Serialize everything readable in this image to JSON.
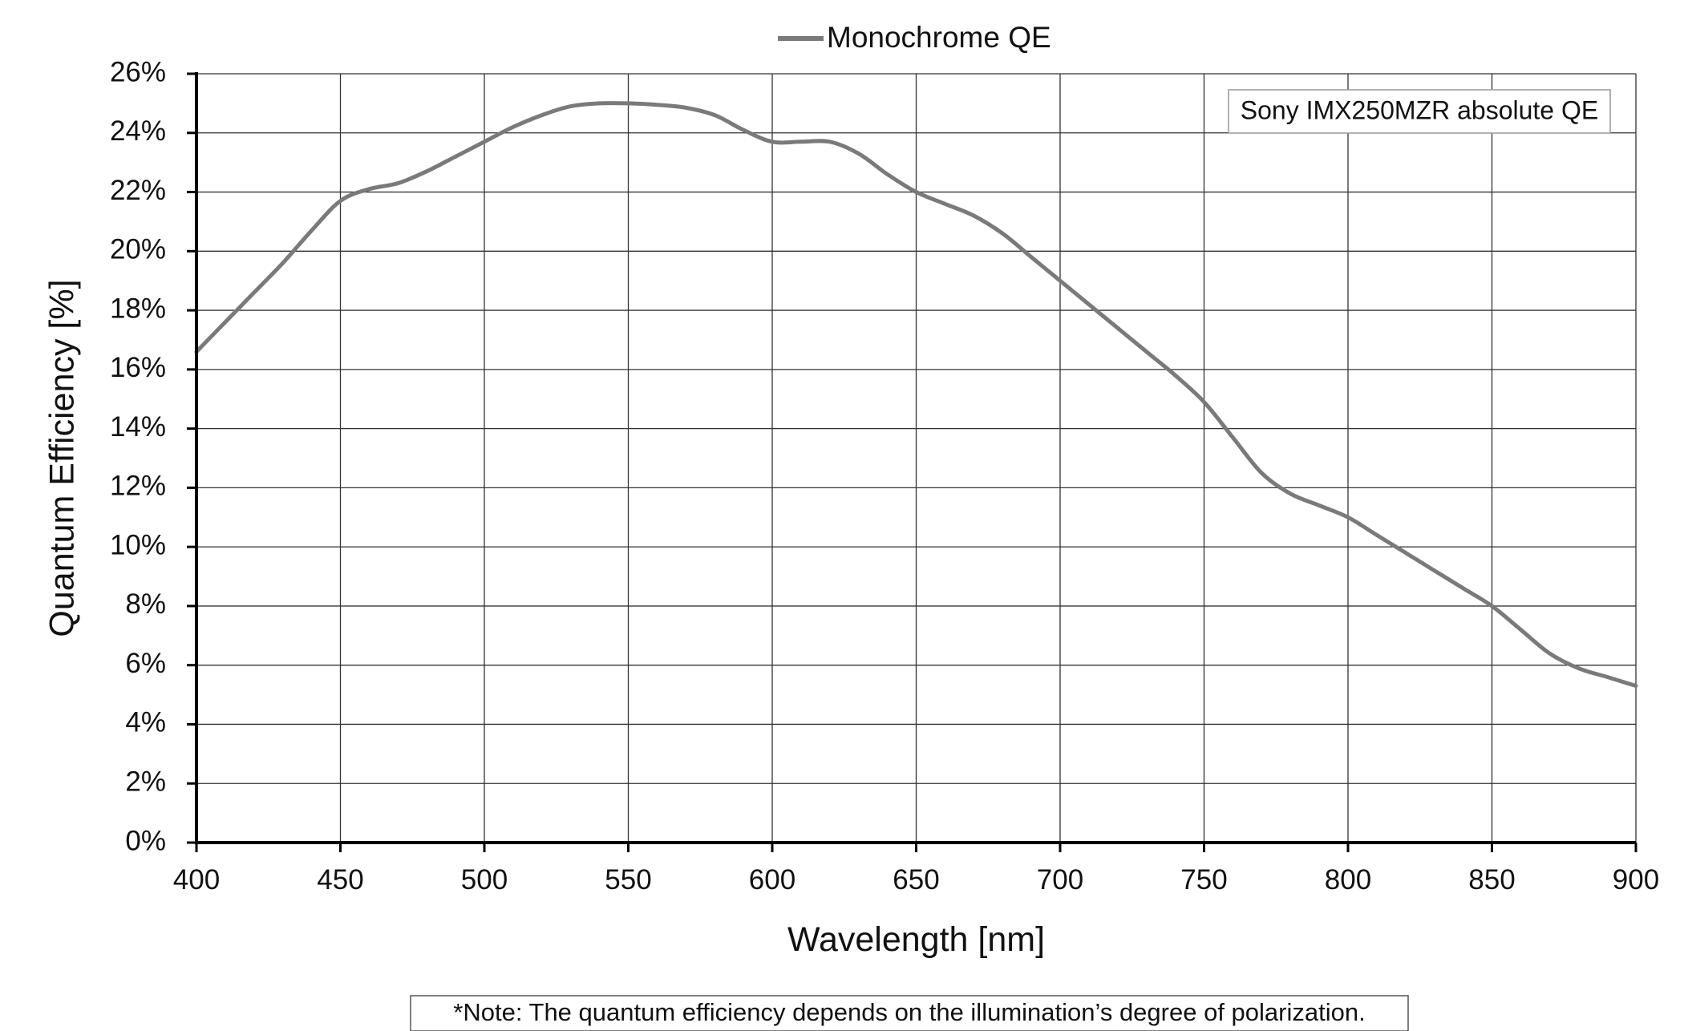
{
  "chart_data": {
    "type": "line",
    "xlabel": "Wavelength [nm]",
    "ylabel": "Quantum Efficiency [%]",
    "xlim": [
      400,
      900
    ],
    "ylim": [
      0,
      26
    ],
    "x_ticks": [
      "400",
      "450",
      "500",
      "550",
      "600",
      "650",
      "700",
      "750",
      "800",
      "850",
      "900"
    ],
    "y_ticks": [
      "0%",
      "2%",
      "4%",
      "6%",
      "8%",
      "10%",
      "12%",
      "14%",
      "16%",
      "18%",
      "20%",
      "22%",
      "24%",
      "26%"
    ],
    "grid": true,
    "legend_position": "top-center",
    "annotation": "Sony IMX250MZR absolute QE",
    "note": "*Note: The quantum efficiency depends on the illumination’s degree of polarization.",
    "series": [
      {
        "name": "Monochrome QE",
        "color": "#7a7a7a",
        "x": [
          400,
          410,
          420,
          430,
          440,
          450,
          460,
          470,
          480,
          490,
          500,
          510,
          520,
          530,
          540,
          550,
          560,
          570,
          580,
          590,
          600,
          610,
          620,
          630,
          640,
          650,
          660,
          670,
          680,
          690,
          700,
          710,
          720,
          730,
          740,
          750,
          760,
          770,
          780,
          790,
          800,
          810,
          820,
          830,
          840,
          850,
          860,
          870,
          880,
          890,
          900
        ],
        "y": [
          16.6,
          17.6,
          18.6,
          19.6,
          20.7,
          21.7,
          22.1,
          22.3,
          22.7,
          23.2,
          23.7,
          24.2,
          24.6,
          24.9,
          25.0,
          25.0,
          24.95,
          24.85,
          24.6,
          24.1,
          23.7,
          23.7,
          23.7,
          23.3,
          22.6,
          22.0,
          21.6,
          21.2,
          20.6,
          19.8,
          19.0,
          18.2,
          17.4,
          16.6,
          15.8,
          14.9,
          13.7,
          12.5,
          11.8,
          11.4,
          11.0,
          10.4,
          9.8,
          9.2,
          8.6,
          8.0,
          7.2,
          6.4,
          5.9,
          5.6,
          5.3
        ]
      }
    ]
  }
}
